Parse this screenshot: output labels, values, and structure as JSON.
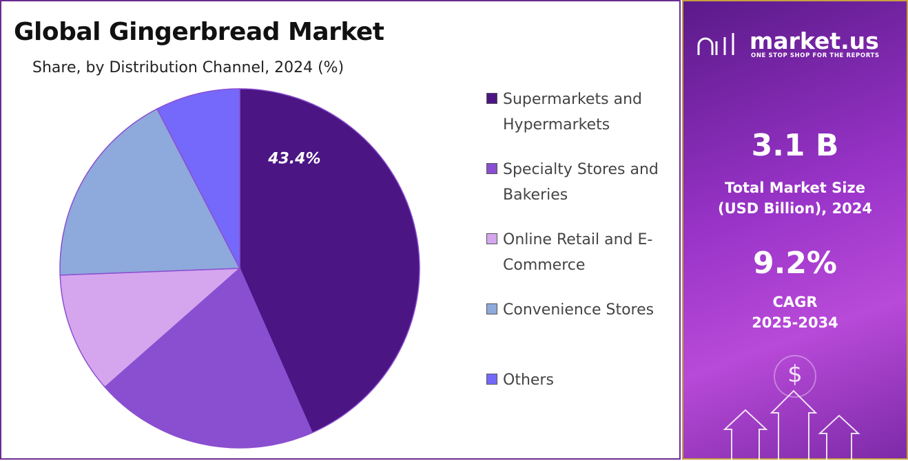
{
  "chart_data": {
    "type": "pie",
    "title": "Global Gingerbread Market",
    "subtitle": "Share, by Distribution Channel, 2024 (%)",
    "categories": [
      "Supermarkets and Hypermarkets",
      "Specialty Stores and Bakeries",
      "Online Retail and E-Commerce",
      "Convenience Stores",
      "Others"
    ],
    "values": [
      43.4,
      20.1,
      10.9,
      18.0,
      7.6
    ],
    "value_labels": [
      "43.4%",
      null,
      null,
      null,
      null
    ],
    "colors": [
      "#4b1584",
      "#8a4fd0",
      "#d5a6ee",
      "#8ea9db",
      "#7569fb"
    ]
  },
  "panel": {
    "brand": "market.us",
    "tagline": "ONE STOP SHOP FOR THE REPORTS",
    "market_size": "3.1 B",
    "market_size_label": [
      "Total Market Size",
      "(USD Billion), 2024"
    ],
    "cagr": "9.2%",
    "cagr_label": [
      "CAGR",
      "2025-2034"
    ]
  }
}
